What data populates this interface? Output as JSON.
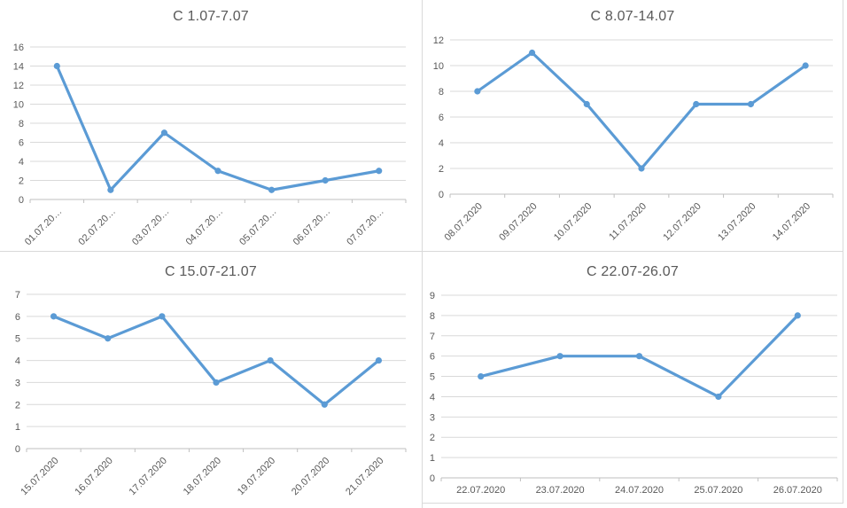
{
  "page": {
    "background": "#ffffff",
    "panel_border_color": "#d9d9d9"
  },
  "colors": {
    "series_line": "#5b9bd5",
    "marker_fill": "#5b9bd5",
    "gridline": "#d9d9d9",
    "axis_line": "#bfbfbf",
    "tick_label": "#595959",
    "title": "#595959"
  },
  "chart_data": [
    {
      "type": "line",
      "title": "С 1.07-7.07",
      "categories": [
        "01.07.20…",
        "02.07.20…",
        "03.07.20…",
        "04.07.20…",
        "05.07.20…",
        "06.07.20…",
        "07.07.20…"
      ],
      "values": [
        14,
        1,
        7,
        3,
        1,
        2,
        3
      ],
      "xlabel": "",
      "ylabel": "",
      "ylim": [
        0,
        16
      ],
      "yticks": [
        0,
        2,
        4,
        6,
        8,
        10,
        12,
        14,
        16
      ],
      "grid": true,
      "legend": "none",
      "marker": "circle",
      "x_tick_label_rotation": 45
    },
    {
      "type": "line",
      "title": "С 8.07-14.07",
      "categories": [
        "08.07.2020",
        "09.07.2020",
        "10.07.2020",
        "11.07.2020",
        "12.07.2020",
        "13.07.2020",
        "14.07.2020"
      ],
      "values": [
        8,
        11,
        7,
        2,
        7,
        7,
        10
      ],
      "xlabel": "",
      "ylabel": "",
      "ylim": [
        0,
        12
      ],
      "yticks": [
        0,
        2,
        4,
        6,
        8,
        10,
        12
      ],
      "grid": true,
      "legend": "none",
      "marker": "circle",
      "x_tick_label_rotation": 45
    },
    {
      "type": "line",
      "title": "С 15.07-21.07",
      "categories": [
        "15.07.2020",
        "16.07.2020",
        "17.07.2020",
        "18.07.2020",
        "19.07.2020",
        "20.07.2020",
        "21.07.2020"
      ],
      "values": [
        6,
        5,
        6,
        3,
        4,
        2,
        4
      ],
      "xlabel": "",
      "ylabel": "",
      "ylim": [
        0,
        7
      ],
      "yticks": [
        0,
        1,
        2,
        3,
        4,
        5,
        6,
        7
      ],
      "grid": true,
      "legend": "none",
      "marker": "circle",
      "x_tick_label_rotation": 45
    },
    {
      "type": "line",
      "title": "С 22.07-26.07",
      "categories": [
        "22.07.2020",
        "23.07.2020",
        "24.07.2020",
        "25.07.2020",
        "26.07.2020"
      ],
      "values": [
        5,
        6,
        6,
        4,
        8
      ],
      "xlabel": "",
      "ylabel": "",
      "ylim": [
        0,
        9
      ],
      "yticks": [
        0,
        1,
        2,
        3,
        4,
        5,
        6,
        7,
        8,
        9
      ],
      "grid": true,
      "legend": "none",
      "marker": "circle",
      "x_tick_label_rotation": 0
    }
  ]
}
